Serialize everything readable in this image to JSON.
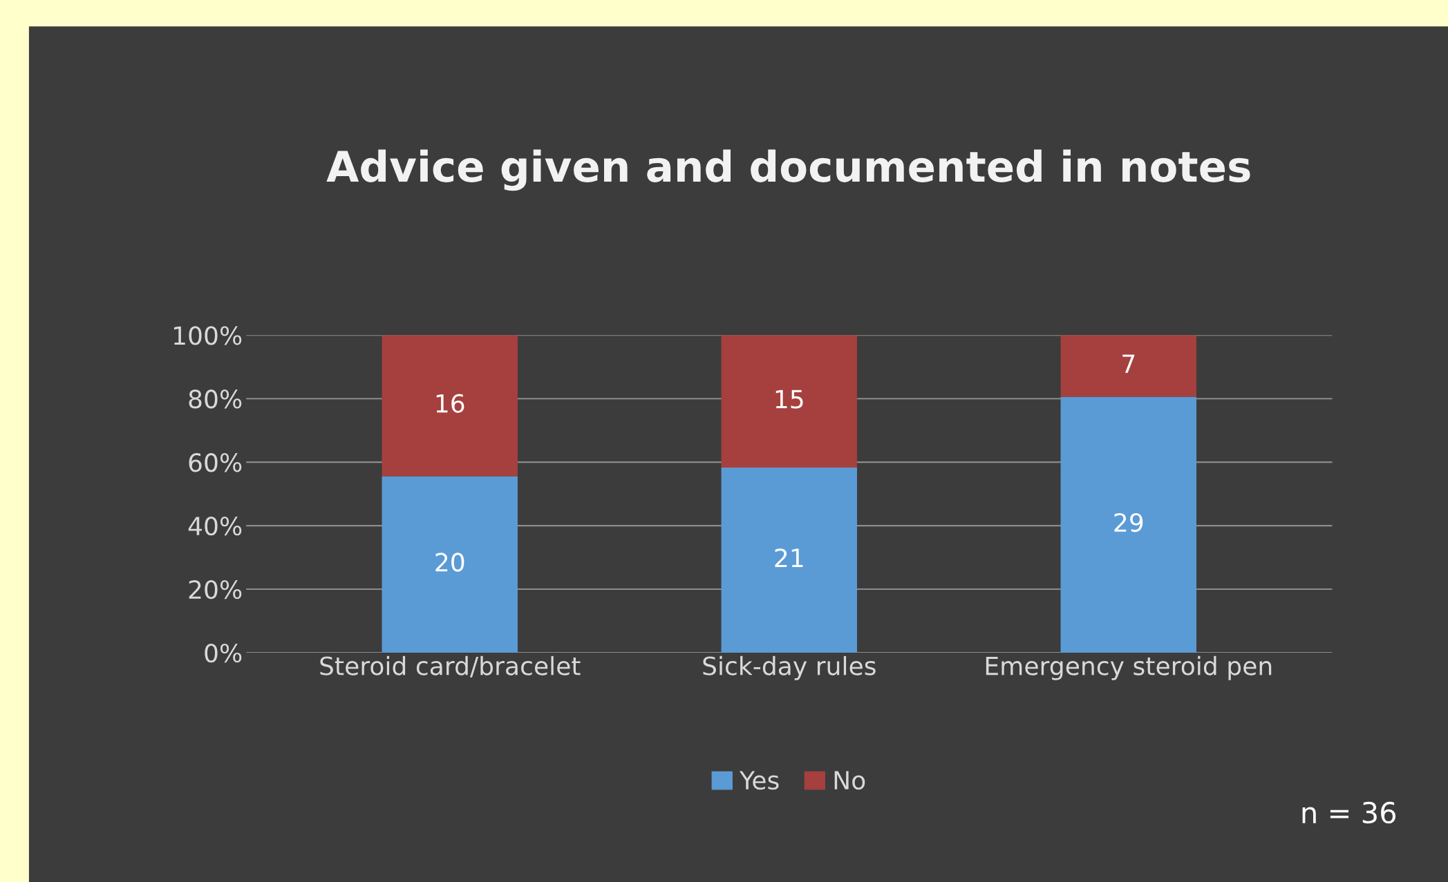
{
  "chart_data": {
    "type": "bar",
    "stacked": true,
    "title": "Advice given and documented in notes",
    "categories": [
      "Steroid card/bracelet",
      "Sick-day rules",
      "Emergency steroid pen"
    ],
    "series": [
      {
        "name": "Yes",
        "color": "#5b9bd5",
        "values": [
          55.6,
          58.3,
          80.6
        ]
      },
      {
        "name": "No",
        "color": "#a5403e",
        "values": [
          44.4,
          41.7,
          19.4
        ]
      }
    ],
    "ylim": [
      0,
      100
    ],
    "yticks": [
      {
        "value": 0,
        "label": "0%"
      },
      {
        "value": 20,
        "label": "20%"
      },
      {
        "value": 40,
        "label": "40%"
      },
      {
        "value": 60,
        "label": "60%"
      },
      {
        "value": 80,
        "label": "80%"
      },
      {
        "value": 100,
        "label": "100%"
      }
    ],
    "grid": "y",
    "legend": "bottom",
    "annotations": [
      "20",
      "21",
      "29",
      "16",
      "15",
      "7",
      "n = 36"
    ]
  }
}
